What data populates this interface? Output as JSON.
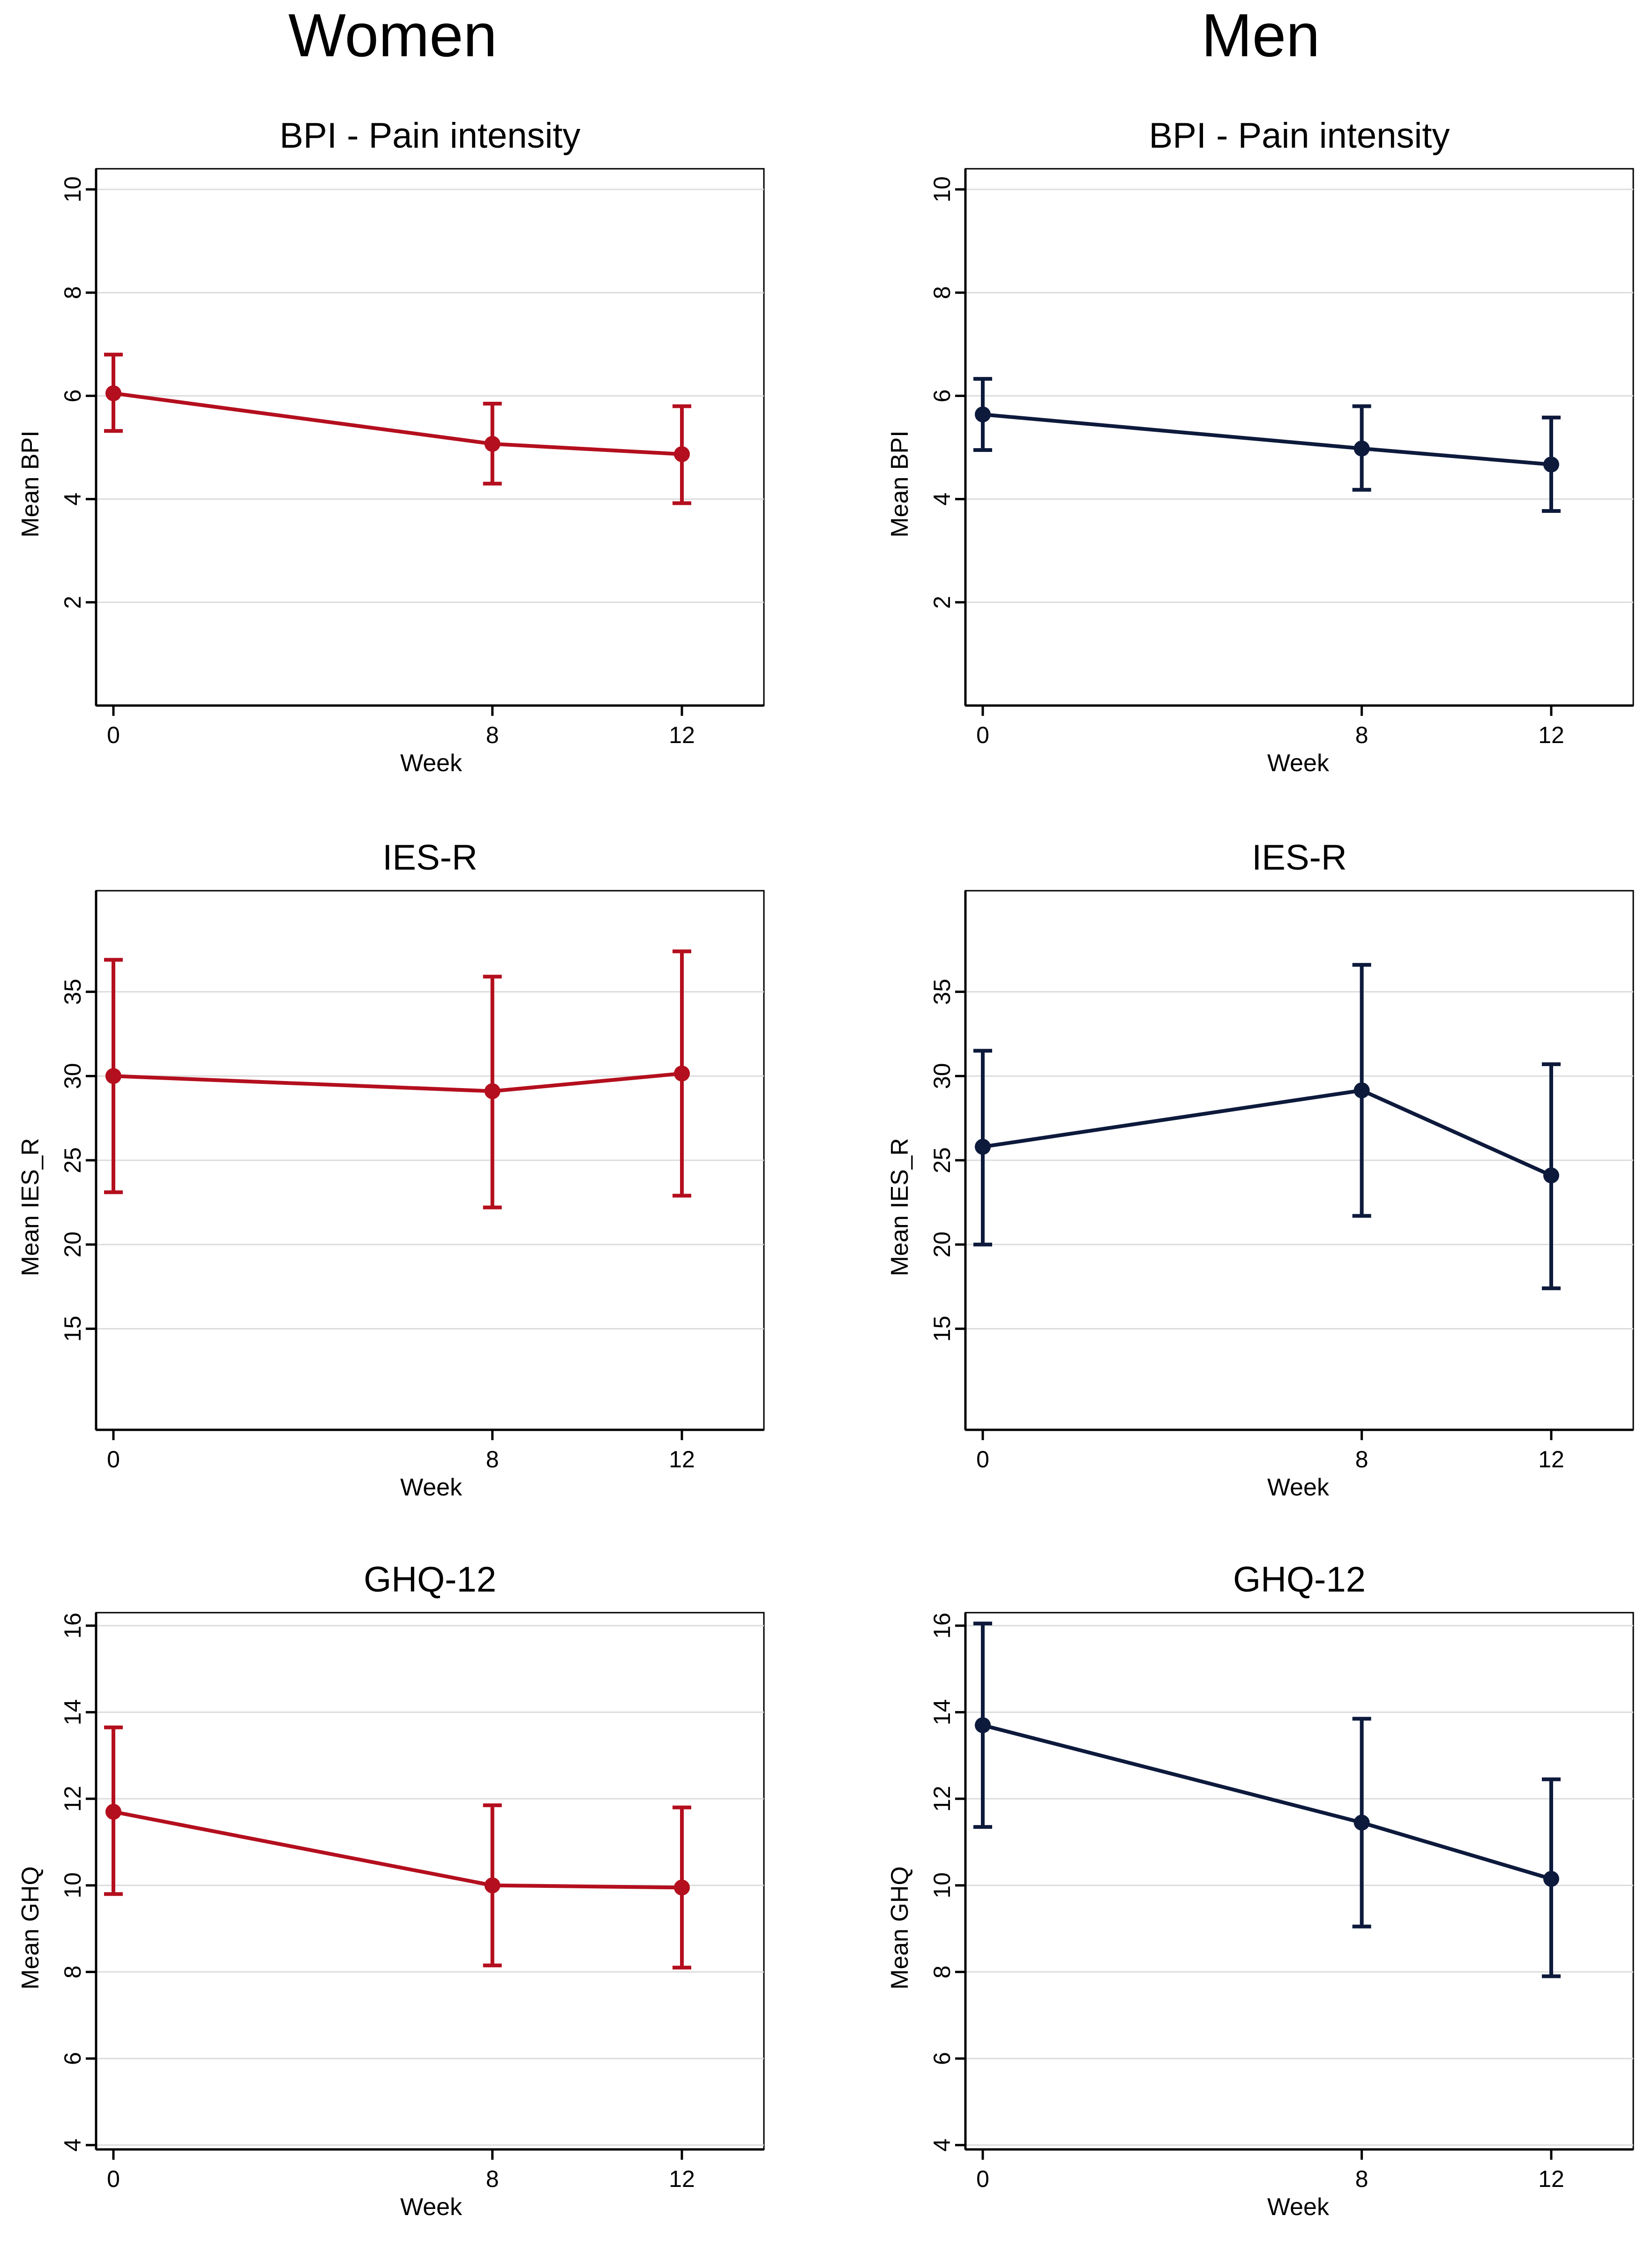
{
  "columns": {
    "left": "Women",
    "right": "Men"
  },
  "colors": {
    "women": "#b40f1e",
    "men": "#0d1a3c"
  },
  "chart_data": [
    {
      "type": "line",
      "group": "Women",
      "title": "BPI - Pain intensity",
      "xlabel": "Week",
      "ylabel": "Mean BPI",
      "x": [
        0,
        8,
        12
      ],
      "xticks": [
        "0",
        "8",
        "12"
      ],
      "ylim": [
        0,
        10.4
      ],
      "yticks": [
        2,
        4,
        6,
        8,
        10
      ],
      "grid": true,
      "series": [
        {
          "name": "Women",
          "values": [
            6.05,
            5.07,
            4.87
          ],
          "ci_low": [
            5.32,
            4.3,
            3.92
          ],
          "ci_high": [
            6.8,
            5.85,
            5.8
          ]
        }
      ]
    },
    {
      "type": "line",
      "group": "Men",
      "title": "BPI - Pain intensity",
      "xlabel": "Week",
      "ylabel": "Mean BPI",
      "x": [
        0,
        8,
        12
      ],
      "xticks": [
        "0",
        "8",
        "12"
      ],
      "ylim": [
        0,
        10.4
      ],
      "yticks": [
        2,
        4,
        6,
        8,
        10
      ],
      "grid": true,
      "series": [
        {
          "name": "Men",
          "values": [
            5.64,
            4.98,
            4.67
          ],
          "ci_low": [
            4.95,
            4.18,
            3.77
          ],
          "ci_high": [
            6.33,
            5.8,
            5.58
          ]
        }
      ]
    },
    {
      "type": "line",
      "group": "Women",
      "title": "IES-R",
      "xlabel": "Week",
      "ylabel": "Mean IES_R",
      "x": [
        0,
        8,
        12
      ],
      "xticks": [
        "0",
        "8",
        "12"
      ],
      "ylim": [
        9,
        41
      ],
      "yticks": [
        15,
        20,
        25,
        30,
        35
      ],
      "grid": true,
      "series": [
        {
          "name": "Women",
          "values": [
            30.0,
            29.1,
            30.15
          ],
          "ci_low": [
            23.1,
            22.2,
            22.9
          ],
          "ci_high": [
            36.9,
            35.9,
            37.4
          ]
        }
      ]
    },
    {
      "type": "line",
      "group": "Men",
      "title": "IES-R",
      "xlabel": "Week",
      "ylabel": "Mean IES_R",
      "x": [
        0,
        8,
        12
      ],
      "xticks": [
        "0",
        "8",
        "12"
      ],
      "ylim": [
        9,
        41
      ],
      "yticks": [
        15,
        20,
        25,
        30,
        35
      ],
      "grid": true,
      "series": [
        {
          "name": "Men",
          "values": [
            25.8,
            29.15,
            24.1
          ],
          "ci_low": [
            20.0,
            21.7,
            17.4
          ],
          "ci_high": [
            31.5,
            36.6,
            30.7
          ]
        }
      ]
    },
    {
      "type": "line",
      "group": "Women",
      "title": "GHQ-12",
      "xlabel": "Week",
      "ylabel": "Mean GHQ",
      "x": [
        0,
        8,
        12
      ],
      "xticks": [
        "0",
        "8",
        "12"
      ],
      "ylim": [
        3.9,
        16.3
      ],
      "yticks": [
        4,
        6,
        8,
        10,
        12,
        14,
        16
      ],
      "grid": true,
      "series": [
        {
          "name": "Women",
          "values": [
            11.7,
            10.0,
            9.95
          ],
          "ci_low": [
            9.8,
            8.15,
            8.1
          ],
          "ci_high": [
            13.65,
            11.85,
            11.8
          ]
        }
      ]
    },
    {
      "type": "line",
      "group": "Men",
      "title": "GHQ-12",
      "xlabel": "Week",
      "ylabel": "Mean GHQ",
      "x": [
        0,
        8,
        12
      ],
      "xticks": [
        "0",
        "8",
        "12"
      ],
      "ylim": [
        3.9,
        16.3
      ],
      "yticks": [
        4,
        6,
        8,
        10,
        12,
        14,
        16
      ],
      "grid": true,
      "series": [
        {
          "name": "Men",
          "values": [
            13.7,
            11.45,
            10.15
          ],
          "ci_low": [
            11.35,
            9.05,
            7.9
          ],
          "ci_high": [
            16.05,
            13.85,
            12.45
          ]
        }
      ]
    }
  ]
}
